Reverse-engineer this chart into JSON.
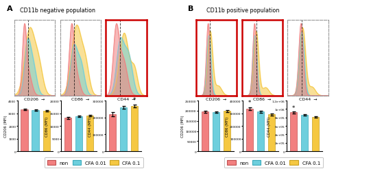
{
  "panel_A_title": "CD11b negative population",
  "panel_B_title": "CD11b positive population",
  "panel_A_label": "A",
  "panel_B_label": "B",
  "markers": [
    "CD206",
    "CD86",
    "CD44"
  ],
  "legend_labels": [
    "non",
    "CFA 0.01",
    "CFA 0.1"
  ],
  "hist_colors": [
    "#F28080",
    "#6ECFDD",
    "#F5C842"
  ],
  "bar_colors": [
    "#F28080",
    "#6ECFDD",
    "#F5C842"
  ],
  "bar_edge_colors": [
    "#C05050",
    "#3AAABB",
    "#C8A020"
  ],
  "A_highlighted": [
    2
  ],
  "B_highlighted": [
    0,
    1
  ],
  "A_bar_CD206": [
    3300,
    3250,
    3180
  ],
  "A_bar_CD86": [
    13200,
    13800,
    14000
  ],
  "A_bar_CD44": [
    220000,
    258000,
    268000
  ],
  "A_bar_CD206_ylim": [
    0,
    4000
  ],
  "A_bar_CD86_ylim": [
    0,
    20000
  ],
  "A_bar_CD44_ylim": [
    0,
    300000
  ],
  "A_bar_CD206_ytick_vals": [
    0,
    1000,
    2000,
    3000,
    4000
  ],
  "A_bar_CD206_ytick_labels": [
    "0",
    "1000",
    "2000",
    "3000",
    "4000"
  ],
  "A_bar_CD86_ytick_vals": [
    0,
    5000,
    10000,
    15000,
    20000
  ],
  "A_bar_CD86_ytick_labels": [
    "0",
    "5000",
    "10000",
    "15000",
    "20000"
  ],
  "A_bar_CD44_ytick_vals": [
    0,
    100000,
    200000,
    300000
  ],
  "A_bar_CD44_ytick_labels": [
    "0",
    "100000",
    "200000",
    "300000"
  ],
  "A_bar_CD206_ylabel": "CD206 (MFI)",
  "A_bar_CD86_ylabel": "CD86 (MFI)",
  "A_bar_CD44_ylabel": "CD44 (MFI)",
  "A_bar_CD206_err": [
    55,
    65,
    50
  ],
  "A_bar_CD86_err": [
    350,
    330,
    310
  ],
  "A_bar_CD44_err": [
    13000,
    8000,
    7000
  ],
  "B_bar_CD206": [
    195000,
    193000,
    198000
  ],
  "B_bar_CD86": [
    335000,
    312000,
    290000
  ],
  "B_bar_CD44": [
    920000,
    855000,
    810000
  ],
  "B_bar_CD206_ylim": [
    0,
    250000
  ],
  "B_bar_CD86_ylim": [
    0,
    400000
  ],
  "B_bar_CD44_ylim": [
    0,
    1200000
  ],
  "B_bar_CD206_ytick_vals": [
    0,
    50000,
    100000,
    150000,
    200000,
    250000
  ],
  "B_bar_CD206_ytick_labels": [
    "0",
    "50000",
    "100000",
    "150000",
    "200000",
    "250000"
  ],
  "B_bar_CD86_ytick_vals": [
    0,
    100000,
    200000,
    300000,
    400000
  ],
  "B_bar_CD86_ytick_labels": [
    "0",
    "100000",
    "200000",
    "300000",
    "400000"
  ],
  "B_bar_CD44_ytick_vals": [
    0,
    200000,
    400000,
    600000,
    800000,
    1000000,
    1200000
  ],
  "B_bar_CD44_ytick_labels": [
    "0",
    "2e+05",
    "4e+05",
    "6e+05",
    "8e+05",
    "1e+06",
    "1.2e+06"
  ],
  "B_bar_CD206_ylabel": "CD206 (MFI)",
  "B_bar_CD86_ylabel": "CD86 (MFI)",
  "B_bar_CD44_ylabel": "CD44 (MFI)",
  "B_bar_CD206_err": [
    4000,
    3500,
    5000
  ],
  "B_bar_CD86_err": [
    10000,
    9000,
    8000
  ],
  "B_bar_CD44_err": [
    22000,
    16000,
    13000
  ],
  "star_A_CD44": true,
  "star_B_CD86": true,
  "star_B_CD44": true,
  "highlight_color": "#CC0000",
  "dashed_border_color": "#999999",
  "bg_color": "#FFFFFF"
}
